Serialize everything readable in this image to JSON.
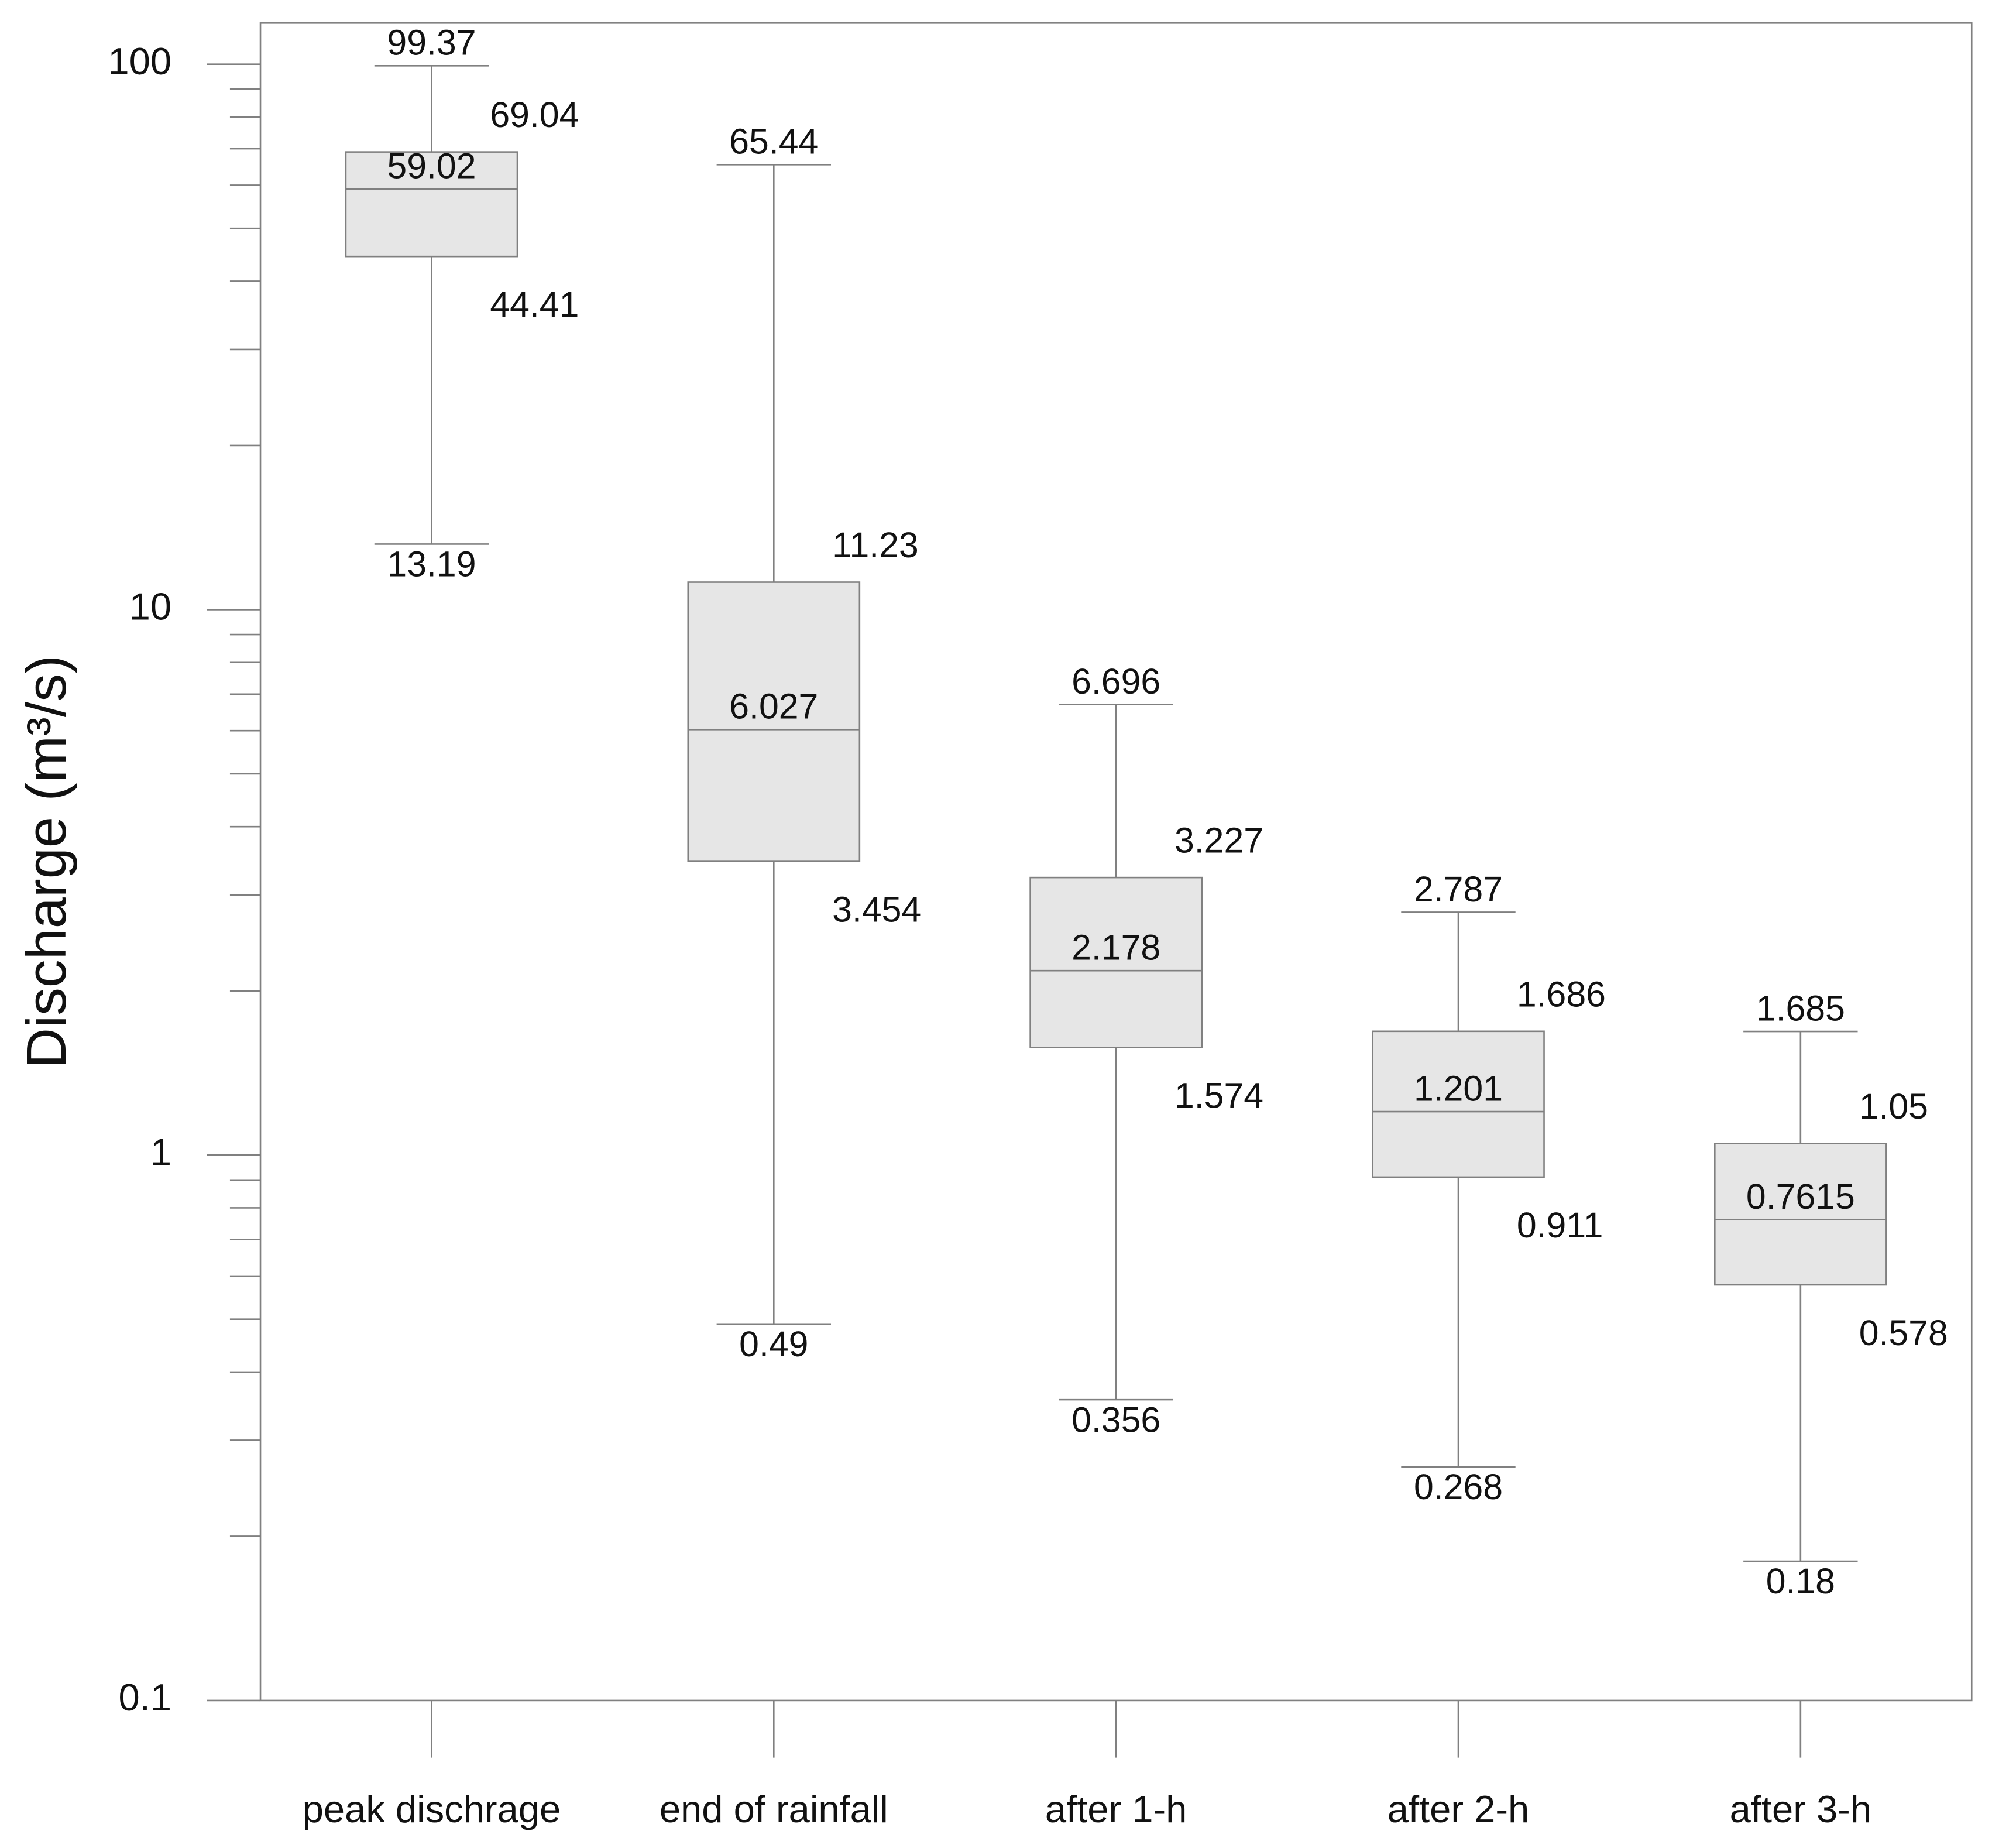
{
  "chart_data": {
    "type": "box",
    "y_label": "Discharge (m³/s)",
    "categories": [
      "peak dischrage",
      "end of rainfall",
      "after 1-h",
      "after 2-h",
      "after 3-h"
    ],
    "stats": {
      "min": [
        13.19,
        0.49,
        0.356,
        0.268,
        0.18
      ],
      "q1": [
        44.41,
        3.454,
        1.574,
        0.911,
        0.578
      ],
      "median": [
        59.02,
        6.027,
        2.178,
        1.201,
        0.7615
      ],
      "q3": [
        69.04,
        11.23,
        3.227,
        1.686,
        1.05
      ],
      "max": [
        99.37,
        65.44,
        6.696,
        2.787,
        1.685
      ]
    },
    "log_y": true,
    "ylim": [
      0.1,
      119
    ],
    "yticks": [
      0.1,
      1,
      10,
      100
    ],
    "minor_yticks": [
      0.2,
      0.3,
      0.4,
      0.5,
      0.6,
      0.7,
      0.8,
      0.9,
      2,
      3,
      4,
      5,
      6,
      7,
      8,
      9,
      20,
      30,
      40,
      50,
      60,
      70,
      80,
      90
    ],
    "color": "#e6e6e6",
    "line_color": "#808080"
  }
}
